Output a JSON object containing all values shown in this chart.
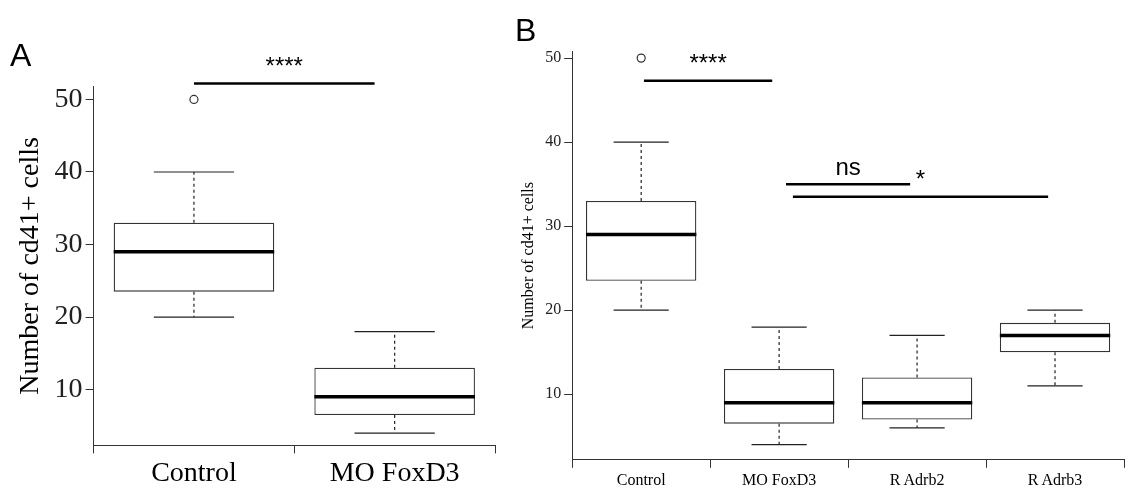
{
  "chart_data": [
    {
      "type": "box",
      "title": "A",
      "ylabel": "Number of cd41+ cells",
      "categories": [
        "Control",
        "MO FoxD3"
      ],
      "boxes": [
        {
          "low": 20,
          "q1": 23.5,
          "median": 29,
          "q3": 33,
          "high": 40,
          "outliers": [
            50
          ]
        },
        {
          "low": 4,
          "q1": 6.5,
          "median": 9,
          "q3": 13,
          "high": 18
        }
      ],
      "ylim": [
        2.3,
        51.8
      ],
      "yticks": [
        10,
        20,
        30,
        40,
        50
      ],
      "grid": false,
      "legend": false,
      "annotations": [
        "****"
      ]
    },
    {
      "type": "box",
      "title": "B",
      "ylabel": "Number of cd41+ cells",
      "categories": [
        "Control",
        "MO FoxD3",
        "R Adrb2",
        "R Adrb3"
      ],
      "boxes": [
        {
          "low": 20,
          "q1": 23.5,
          "median": 29,
          "q3": 33,
          "high": 40,
          "outliers": [
            50
          ]
        },
        {
          "low": 4,
          "q1": 6.5,
          "median": 9,
          "q3": 13,
          "high": 18
        },
        {
          "low": 6,
          "q1": 7,
          "median": 9,
          "q3": 12,
          "high": 17
        },
        {
          "low": 11,
          "q1": 15,
          "median": 17,
          "q3": 18.5,
          "high": 20
        }
      ],
      "ylim": [
        2.2,
        50.8
      ],
      "yticks": [
        10,
        20,
        30,
        40,
        50
      ],
      "grid": false,
      "legend": false,
      "annotations": [
        "****",
        "ns",
        "*"
      ]
    }
  ]
}
